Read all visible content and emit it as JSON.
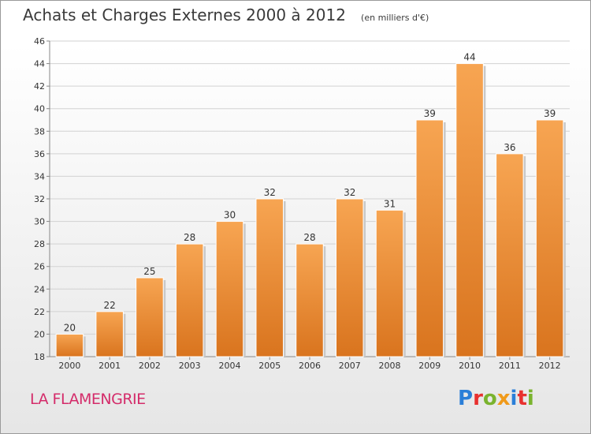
{
  "title": "Achats et Charges Externes 2000 à 2012",
  "subtitle": "(en milliers d'€)",
  "commune": "LA FLAMENGRIE",
  "logo": {
    "text": "Proxiti",
    "letters": [
      {
        "ch": "P",
        "color": "#2b7fd8"
      },
      {
        "ch": "r",
        "color": "#e8312f"
      },
      {
        "ch": "o",
        "color": "#7ab32e"
      },
      {
        "ch": "x",
        "color": "#f09a1a"
      },
      {
        "ch": "i",
        "color": "#2b7fd8"
      },
      {
        "ch": "t",
        "color": "#e8312f"
      },
      {
        "ch": "i",
        "color": "#7ab32e"
      }
    ]
  },
  "chart_data": {
    "type": "bar",
    "categories": [
      "2000",
      "2001",
      "2002",
      "2003",
      "2004",
      "2005",
      "2006",
      "2007",
      "2008",
      "2009",
      "2010",
      "2011",
      "2012"
    ],
    "values": [
      20,
      22,
      25,
      28,
      30,
      32,
      28,
      32,
      31,
      39,
      44,
      36,
      39
    ],
    "data_labels": [
      "20",
      "22",
      "25",
      "28",
      "30",
      "32",
      "28",
      "32",
      "31",
      "39",
      "44",
      "36",
      "39"
    ],
    "title": "Achats et Charges Externes 2000 à 2012",
    "subtitle": "(en milliers d'€)",
    "xlabel": "",
    "ylabel": "",
    "ylim": [
      18,
      46
    ],
    "yticks": [
      18,
      20,
      22,
      24,
      26,
      28,
      30,
      32,
      34,
      36,
      38,
      40,
      42,
      44,
      46
    ],
    "grid": true,
    "bar_color_top": "#f7a552",
    "bar_color_bottom": "#d9741e"
  }
}
